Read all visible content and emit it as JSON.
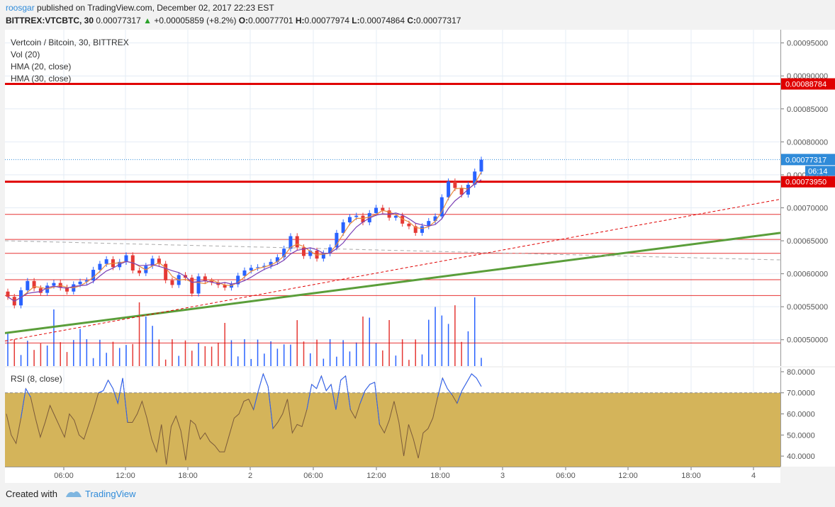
{
  "header": {
    "author": "roosgar",
    "published": "published on TradingView.com, December 02, 2017 22:23 EST",
    "symbol": "BITTREX:VTCBTC, 30",
    "price": "0.00077317",
    "change": "+0.00005859 (+8.2%)",
    "o_label": "O:",
    "o": "0.00077701",
    "h_label": "H:",
    "h": "0.00077974",
    "l_label": "L:",
    "l": "0.00074864",
    "c_label": "C:",
    "c": "0.00077317"
  },
  "legend": {
    "title": "Vertcoin / Bitcoin, 30, BITTREX",
    "vol": "Vol (20)",
    "hma20": "HMA (20, close)",
    "hma30": "HMA (30, close)",
    "rsi": "RSI (8, close)"
  },
  "footer": {
    "created": "Created with",
    "brand": "TradingView"
  },
  "colors": {
    "up": "#2962ff",
    "down": "#e53935",
    "hma20": "#e88a3c",
    "hma30": "#7a3fb5",
    "trend": "#5a9e3a",
    "level": "#e00000",
    "rsiband": "#d4b45a",
    "rsiline": "#7b5a3a"
  },
  "chart_data": [
    {
      "type": "candlestick",
      "title": "Vertcoin / Bitcoin, 30, BITTREX",
      "x_tick_labels": [
        "06:00",
        "12:00",
        "18:00",
        "2",
        "06:00",
        "12:00",
        "18:00",
        "3",
        "06:00",
        "12:00",
        "18:00",
        "4"
      ],
      "y_tick_labels": [
        "0.00095000",
        "0.00090000",
        "0.00085000",
        "0.00080000",
        "0.00075000",
        "0.00070000",
        "0.00065000",
        "0.00060000",
        "0.00055000",
        "0.00050000"
      ],
      "ylim": [
        0.00046,
        0.00097
      ],
      "price_labels": {
        "resistance": "0.00088784",
        "last": "0.00077317",
        "countdown": "06:14",
        "support": "0.00073950"
      },
      "horizontal_levels": [
        0.00088784,
        0.0007395,
        0.00069,
        0.000652,
        0.000631,
        0.000591,
        0.000567,
        0.000495
      ],
      "closes": [
        0.000565,
        0.000552,
        0.000575,
        0.000589,
        0.000578,
        0.000571,
        0.000582,
        0.000586,
        0.000579,
        0.000573,
        0.000584,
        0.000588,
        0.00059,
        0.000606,
        0.000615,
        0.000622,
        0.00061,
        0.000618,
        0.000628,
        0.000605,
        0.000601,
        0.000612,
        0.000623,
        0.000615,
        0.00059,
        0.000583,
        0.000598,
        0.000594,
        0.00057,
        0.000596,
        0.000589,
        0.000587,
        0.000583,
        0.000579,
        0.000584,
        0.000597,
        0.000605,
        0.000609,
        0.00061,
        0.000612,
        0.000618,
        0.000625,
        0.000638,
        0.000657,
        0.00064,
        0.000627,
        0.000635,
        0.000623,
        0.000631,
        0.00064,
        0.000662,
        0.000678,
        0.000686,
        0.000688,
        0.000678,
        0.000692,
        0.0007,
        0.000696,
        0.000685,
        0.000688,
        0.000676,
        0.000672,
        0.000662,
        0.000672,
        0.00068,
        0.000687,
        0.000716,
        0.00074,
        0.00073,
        0.00072,
        0.000735,
        0.000755,
        0.000773
      ]
    },
    {
      "type": "line",
      "title": "RSI (8, close)",
      "y_tick_labels": [
        "80.0000",
        "70.0000",
        "60.0000",
        "50.0000",
        "40.0000"
      ],
      "ylim": [
        35,
        82
      ],
      "band": [
        35,
        70
      ],
      "values": [
        60,
        50,
        46,
        58,
        72,
        68,
        58,
        49,
        56,
        64,
        59,
        54,
        49,
        60,
        57,
        50,
        48,
        55,
        62,
        70,
        71,
        76,
        72,
        65,
        77,
        56,
        56,
        60,
        66,
        58,
        48,
        42,
        55,
        36,
        54,
        59,
        52,
        38,
        57,
        55,
        48,
        51,
        47,
        45,
        42,
        42,
        50,
        58,
        60,
        66,
        67,
        62,
        71,
        79,
        73,
        53,
        56,
        60,
        67,
        51,
        55,
        54,
        62,
        74,
        72,
        78,
        71,
        74,
        62,
        76,
        78,
        62,
        58,
        65,
        71,
        74,
        75,
        55,
        51,
        57,
        66,
        56,
        40,
        55,
        48,
        39,
        51,
        53,
        58,
        68,
        77,
        72,
        69,
        65,
        71,
        75,
        79,
        77,
        73
      ]
    }
  ]
}
